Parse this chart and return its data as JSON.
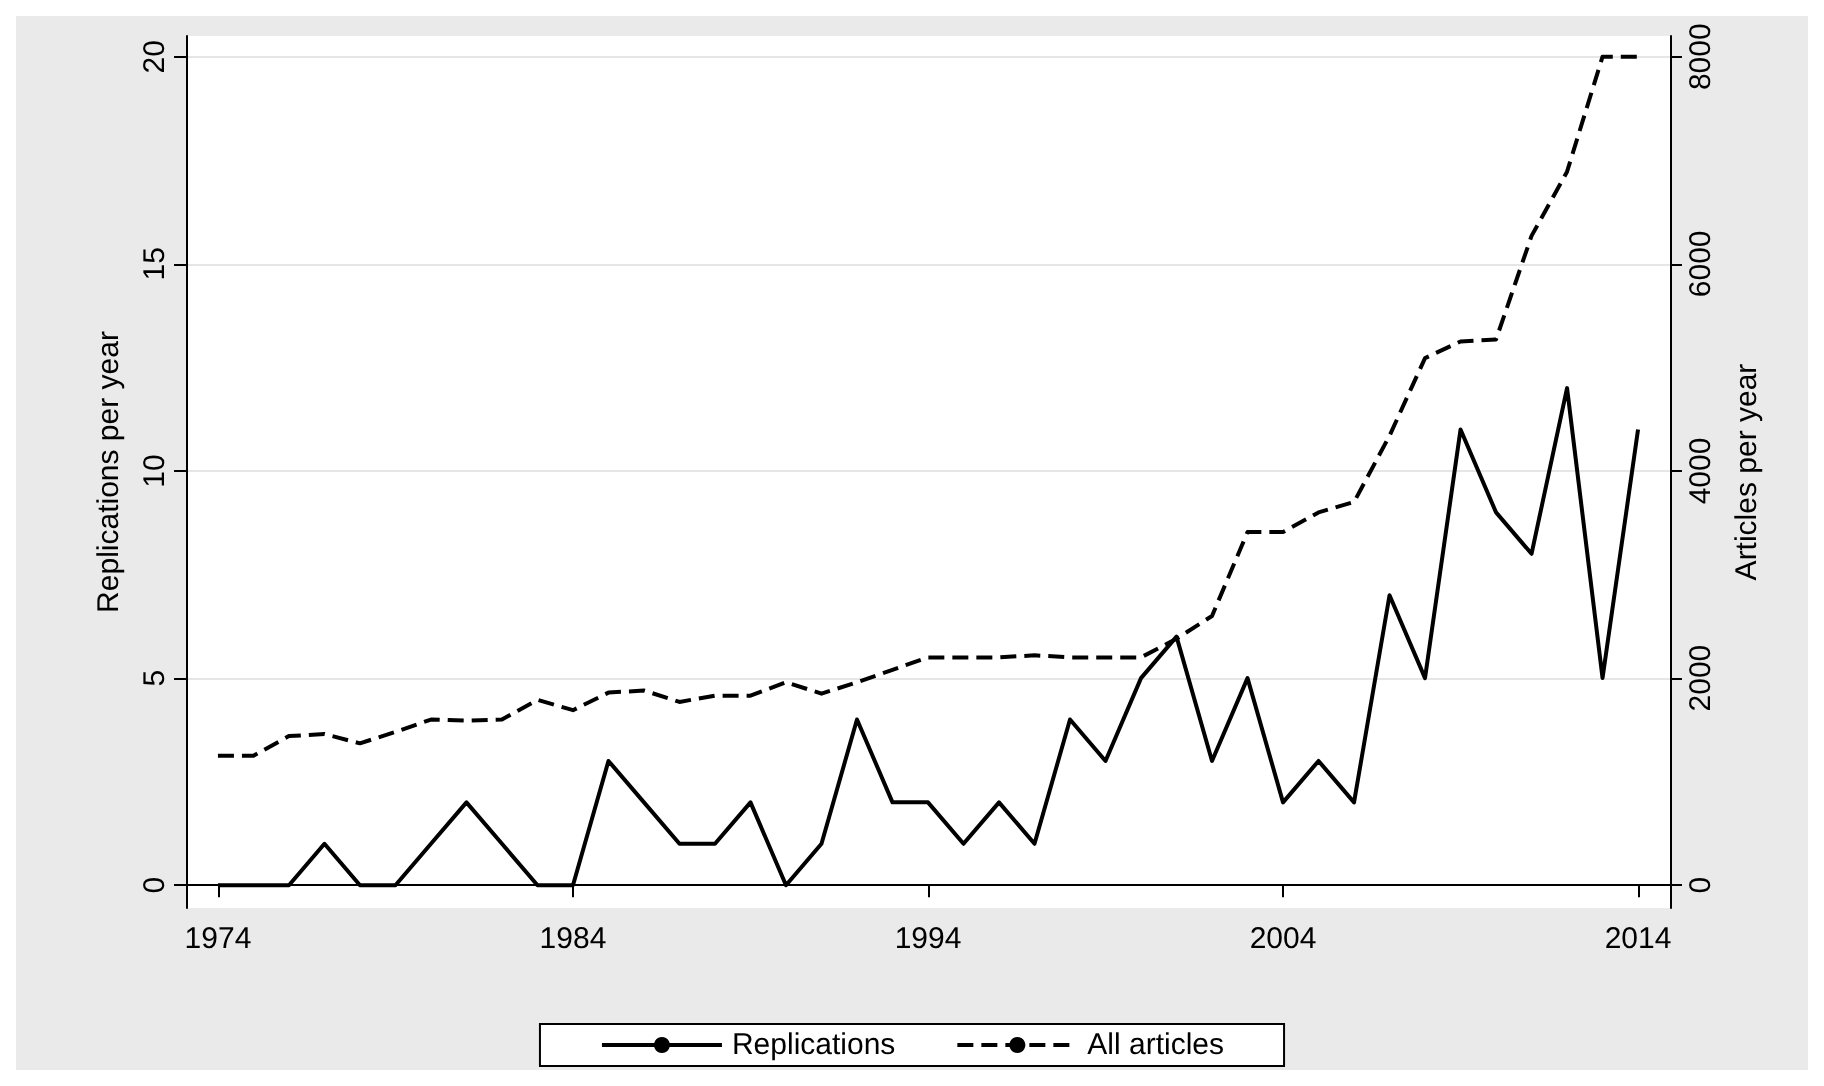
{
  "chart_data": {
    "type": "line",
    "x": [
      1974,
      1975,
      1976,
      1977,
      1978,
      1979,
      1980,
      1981,
      1982,
      1983,
      1984,
      1985,
      1986,
      1987,
      1988,
      1989,
      1990,
      1991,
      1992,
      1993,
      1994,
      1995,
      1996,
      1997,
      1998,
      1999,
      2000,
      2001,
      2002,
      2003,
      2004,
      2005,
      2006,
      2007,
      2008,
      2009,
      2010,
      2011,
      2012,
      2013,
      2014
    ],
    "series": [
      {
        "name": "Replications",
        "color": "#000000",
        "line_style": "solid",
        "values": [
          0,
          0,
          0,
          1,
          0,
          0,
          1,
          2,
          1,
          0,
          0,
          3,
          2,
          1,
          1,
          2,
          0,
          1,
          4,
          2,
          2,
          1,
          2,
          1,
          4,
          3,
          5,
          6,
          3,
          5,
          2,
          3,
          2,
          7,
          5,
          11,
          9,
          8,
          12,
          5,
          11
        ]
      },
      {
        "name": "All articles",
        "color": "#000000",
        "line_style": "dashed",
        "axis": "y2",
        "values": [
          1250,
          1250,
          1440,
          1460,
          1370,
          1480,
          1600,
          1590,
          1600,
          1790,
          1690,
          1860,
          1880,
          1770,
          1830,
          1830,
          1960,
          1850,
          1960,
          2080,
          2200,
          2200,
          2200,
          2220,
          2200,
          2200,
          2200,
          2380,
          2600,
          3410,
          3410,
          3600,
          3700,
          4340,
          5090,
          5250,
          5270,
          6270,
          6890,
          8000,
          8000
        ]
      }
    ],
    "ylabel": "Replications per year",
    "y2label": "Articles per year",
    "xlim": [
      1973.1,
      2014.9
    ],
    "xticks": [
      1974,
      1984,
      1994,
      2004,
      2014
    ],
    "ylim": [
      -0.55,
      20.5
    ],
    "yticks": [
      0,
      5,
      10,
      15,
      20
    ],
    "y2lim": [
      -220,
      8200
    ],
    "y2ticks": [
      0,
      2000,
      4000,
      6000,
      8000
    ],
    "grid": "y",
    "legend": "bottom",
    "marker": "none"
  }
}
